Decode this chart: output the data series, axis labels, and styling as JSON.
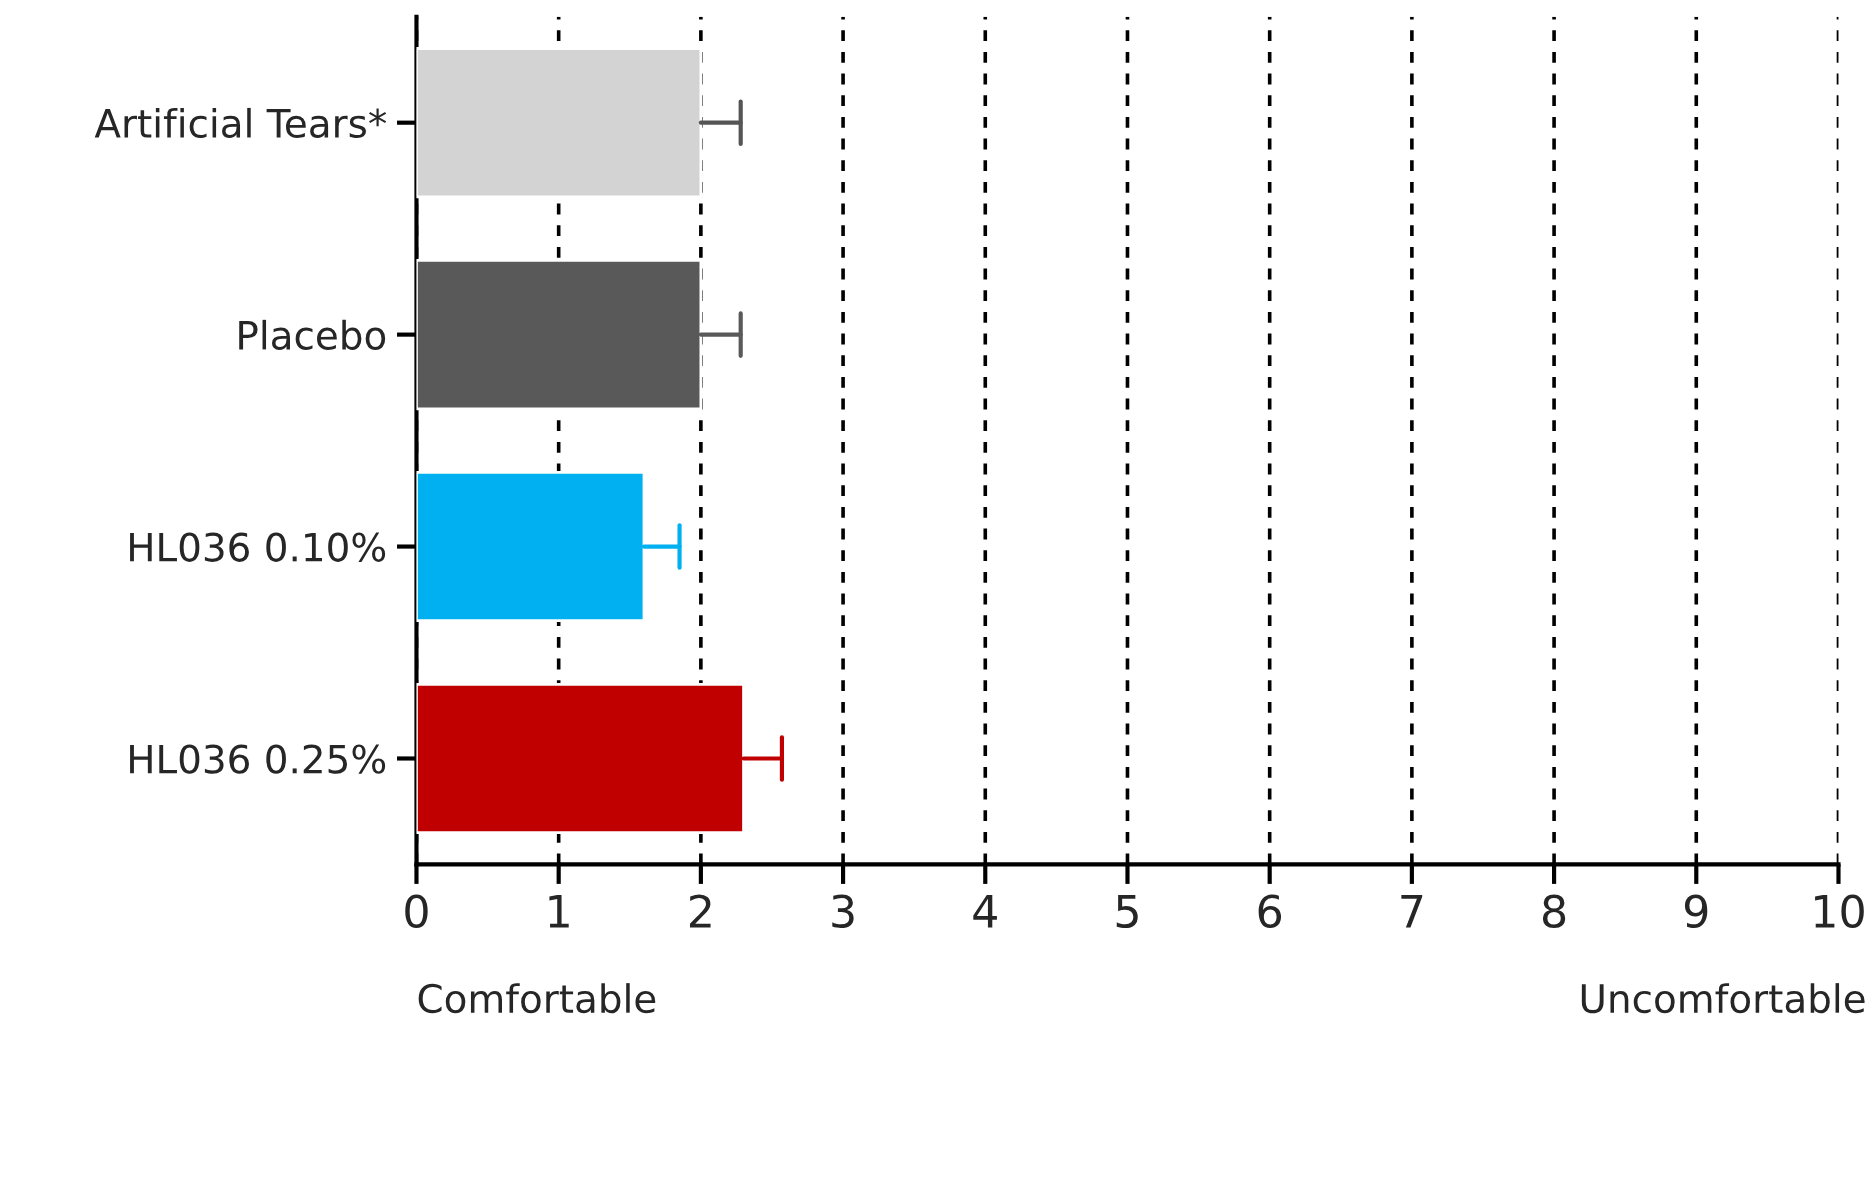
{
  "chart_data": {
    "type": "bar",
    "orientation": "horizontal",
    "categories": [
      "Artificial Tears*",
      "Placebo",
      "HL036 0.10%",
      "HL036 0.25%"
    ],
    "values": [
      2.0,
      2.0,
      1.6,
      2.3
    ],
    "errors": [
      [
        2.0,
        2.28
      ],
      [
        2.0,
        2.28
      ],
      [
        1.6,
        1.85
      ],
      [
        2.3,
        2.57
      ]
    ],
    "colors": [
      "#d3d3d3",
      "#595959",
      "#00b0f0",
      "#c00000"
    ],
    "xlim": [
      0,
      10
    ],
    "xticks": [
      0,
      1,
      2,
      3,
      4,
      5,
      6,
      7,
      8,
      9,
      10
    ],
    "grid": "x",
    "line_style": "dashed",
    "annotations": [
      "Comfortable",
      "Uncomfortable"
    ]
  }
}
